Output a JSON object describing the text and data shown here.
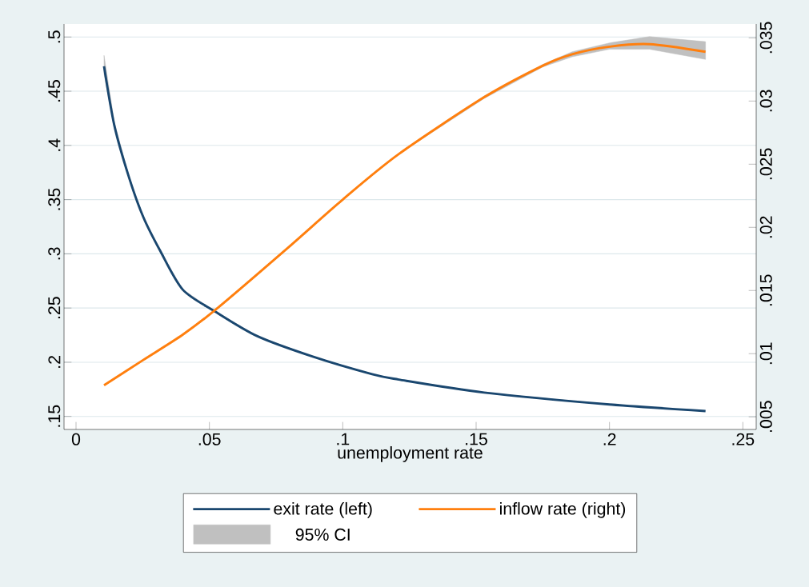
{
  "chart_data": {
    "type": "line",
    "xlabel": "unemployment rate",
    "series": [
      {
        "name": "exit rate (left)",
        "color": "#1a476f",
        "axis": "y",
        "x": [
          0.0105,
          0.0144,
          0.0198,
          0.0252,
          0.0315,
          0.04,
          0.052,
          0.068,
          0.089,
          0.111,
          0.121,
          0.153,
          0.2,
          0.236
        ],
        "values": [
          0.473,
          0.418,
          0.371,
          0.334,
          0.303,
          0.267,
          0.247,
          0.224,
          0.205,
          0.189,
          0.184,
          0.172,
          0.161,
          0.155
        ],
        "lower": [
          0.466,
          0.416,
          0.37,
          0.334,
          0.303,
          0.267,
          0.247,
          0.224,
          0.205,
          0.189,
          0.184,
          0.172,
          0.161,
          0.155
        ],
        "upper": [
          0.483,
          0.421,
          0.372,
          0.334,
          0.303,
          0.267,
          0.247,
          0.224,
          0.205,
          0.189,
          0.184,
          0.172,
          0.161,
          0.155
        ]
      },
      {
        "name": "inflow rate (right)",
        "color": "#ff7f0e",
        "axis": "y2",
        "x": [
          0.0105,
          0.0252,
          0.04,
          0.053,
          0.079,
          0.1,
          0.121,
          0.153,
          0.175,
          0.186,
          0.2,
          0.215,
          0.236
        ],
        "values": [
          0.0075,
          0.0095,
          0.0115,
          0.0136,
          0.0183,
          0.0222,
          0.0258,
          0.0303,
          0.0328,
          0.0337,
          0.0343,
          0.0345,
          0.0339
        ],
        "lower": [
          0.0075,
          0.0095,
          0.0115,
          0.0136,
          0.0183,
          0.0222,
          0.0258,
          0.0302,
          0.0327,
          0.0335,
          0.0341,
          0.0341,
          0.0333
        ],
        "upper": [
          0.0075,
          0.0095,
          0.0115,
          0.0136,
          0.0183,
          0.0222,
          0.0258,
          0.0304,
          0.0329,
          0.0339,
          0.0346,
          0.0351,
          0.0347
        ]
      }
    ],
    "annotations": [
      "95% CI"
    ],
    "xlim": [
      -0.0045,
      0.255
    ],
    "xticks": [
      0,
      {
        "value": 0.05,
        "label": ".05"
      },
      {
        "value": 0.1,
        "label": ".1"
      },
      {
        "value": 0.15,
        "label": ".15"
      },
      {
        "value": 0.2,
        "label": ".2"
      },
      {
        "value": 0.25,
        "label": ".25"
      }
    ],
    "ylim": [
      0.138,
      0.512
    ],
    "yticks": [
      {
        "value": 0.15,
        "label": ".15"
      },
      {
        "value": 0.2,
        "label": ".2"
      },
      {
        "value": 0.25,
        "label": ".25"
      },
      {
        "value": 0.3,
        "label": ".3"
      },
      {
        "value": 0.35,
        "label": ".35"
      },
      {
        "value": 0.4,
        "label": ".4"
      },
      {
        "value": 0.45,
        "label": ".45"
      },
      {
        "value": 0.5,
        "label": ".5"
      }
    ],
    "y2lim": [
      0.004,
      0.0361
    ],
    "y2ticks": [
      {
        "value": 0.005,
        "label": ".005"
      },
      {
        "value": 0.01,
        "label": ".01"
      },
      {
        "value": 0.015,
        "label": ".015"
      },
      {
        "value": 0.02,
        "label": ".02"
      },
      {
        "value": 0.025,
        "label": ".025"
      },
      {
        "value": 0.03,
        "label": ".03"
      },
      {
        "value": 0.035,
        "label": ".035"
      }
    ],
    "grid": "y",
    "legend": "bottom"
  }
}
